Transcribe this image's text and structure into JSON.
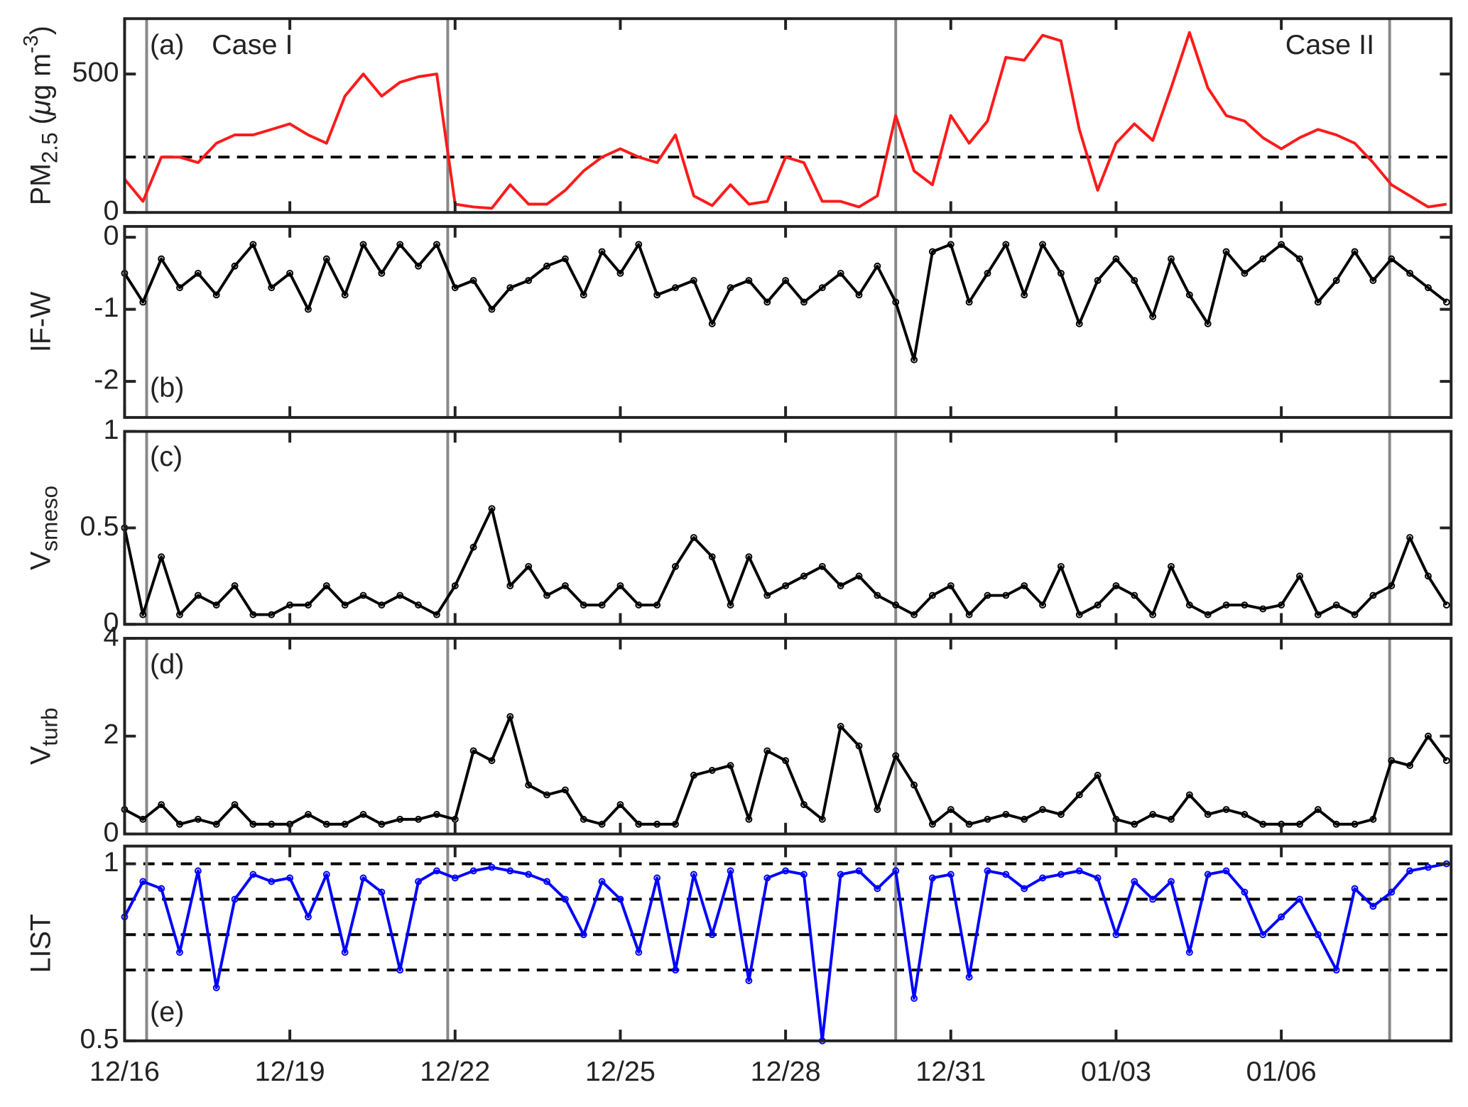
{
  "chart_data": [
    {
      "type": "line",
      "label": "(a)",
      "case_left": "Case I",
      "case_right": "Case II",
      "ylabel": "PM",
      "ylabel_sub": "2.5",
      "ylabel_unit": " (",
      "ylabel_mu": "μ",
      "ylabel_unit2": "g m",
      "ylabel_sup": "-3",
      "ylabel_end": ")",
      "color": "#ff1a1a",
      "marker": false,
      "values": [
        120,
        40,
        200,
        200,
        180,
        250,
        280,
        280,
        300,
        320,
        280,
        250,
        420,
        500,
        420,
        470,
        490,
        500,
        30,
        20,
        15,
        100,
        30,
        30,
        80,
        150,
        200,
        230,
        200,
        180,
        280,
        60,
        25,
        100,
        30,
        40,
        200,
        180,
        40,
        40,
        20,
        60,
        350,
        150,
        100,
        350,
        250,
        330,
        560,
        550,
        640,
        620,
        300,
        80,
        250,
        320,
        260,
        450,
        650,
        450,
        350,
        330,
        270,
        230,
        270,
        300,
        280,
        250,
        180,
        100,
        60,
        20,
        30
      ],
      "xlim": [
        0,
        72.25
      ],
      "ylim": [
        0,
        700
      ],
      "yticks": [
        0,
        500
      ],
      "hlines": [
        200
      ]
    },
    {
      "type": "line",
      "label": "(b)",
      "ylabel": "IF-W",
      "color": "#000000",
      "marker": true,
      "values": [
        -0.5,
        -0.9,
        -0.3,
        -0.7,
        -0.5,
        -0.8,
        -0.4,
        -0.1,
        -0.7,
        -0.5,
        -1.0,
        -0.3,
        -0.8,
        -0.1,
        -0.5,
        -0.1,
        -0.4,
        -0.1,
        -0.7,
        -0.6,
        -1.0,
        -0.7,
        -0.6,
        -0.4,
        -0.3,
        -0.8,
        -0.2,
        -0.5,
        -0.1,
        -0.8,
        -0.7,
        -0.6,
        -1.2,
        -0.7,
        -0.6,
        -0.9,
        -0.6,
        -0.9,
        -0.7,
        -0.5,
        -0.8,
        -0.4,
        -0.9,
        -1.7,
        -0.2,
        -0.1,
        -0.9,
        -0.5,
        -0.1,
        -0.8,
        -0.1,
        -0.5,
        -1.2,
        -0.6,
        -0.3,
        -0.6,
        -1.1,
        -0.3,
        -0.8,
        -1.2,
        -0.2,
        -0.5,
        -0.3,
        -0.1,
        -0.3,
        -0.9,
        -0.6,
        -0.2,
        -0.6,
        -0.3,
        -0.5,
        -0.7,
        -0.9
      ],
      "xlim": [
        0,
        72.25
      ],
      "ylim": [
        -2.5,
        0.15
      ],
      "yticks": [
        -2,
        -1,
        0
      ]
    },
    {
      "type": "line",
      "label": "(c)",
      "ylabel": "V",
      "ylabel_sub": "smeso",
      "color": "#000000",
      "marker": true,
      "values": [
        0.5,
        0.05,
        0.35,
        0.05,
        0.15,
        0.1,
        0.2,
        0.05,
        0.05,
        0.1,
        0.1,
        0.2,
        0.1,
        0.15,
        0.1,
        0.15,
        0.1,
        0.05,
        0.2,
        0.4,
        0.6,
        0.2,
        0.3,
        0.15,
        0.2,
        0.1,
        0.1,
        0.2,
        0.1,
        0.1,
        0.3,
        0.45,
        0.35,
        0.1,
        0.35,
        0.15,
        0.2,
        0.25,
        0.3,
        0.2,
        0.25,
        0.15,
        0.1,
        0.05,
        0.15,
        0.2,
        0.05,
        0.15,
        0.15,
        0.2,
        0.1,
        0.3,
        0.05,
        0.1,
        0.2,
        0.15,
        0.05,
        0.3,
        0.1,
        0.05,
        0.1,
        0.1,
        0.08,
        0.1,
        0.25,
        0.05,
        0.1,
        0.05,
        0.15,
        0.2,
        0.45,
        0.25,
        0.1
      ],
      "xlim": [
        0,
        72.25
      ],
      "ylim": [
        0,
        1
      ],
      "yticks": [
        0,
        0.5,
        1
      ]
    },
    {
      "type": "line",
      "label": "(d)",
      "ylabel": "V",
      "ylabel_sub": "turb",
      "color": "#000000",
      "marker": true,
      "values": [
        0.5,
        0.3,
        0.6,
        0.2,
        0.3,
        0.2,
        0.6,
        0.2,
        0.2,
        0.2,
        0.4,
        0.2,
        0.2,
        0.4,
        0.2,
        0.3,
        0.3,
        0.4,
        0.3,
        1.7,
        1.5,
        2.4,
        1.0,
        0.8,
        0.9,
        0.3,
        0.2,
        0.6,
        0.2,
        0.2,
        0.2,
        1.2,
        1.3,
        1.4,
        0.3,
        1.7,
        1.5,
        0.6,
        0.3,
        2.2,
        1.8,
        0.5,
        1.6,
        1.0,
        0.2,
        0.5,
        0.2,
        0.3,
        0.4,
        0.3,
        0.5,
        0.4,
        0.8,
        1.2,
        0.3,
        0.2,
        0.4,
        0.3,
        0.8,
        0.4,
        0.5,
        0.4,
        0.2,
        0.2,
        0.2,
        0.5,
        0.2,
        0.2,
        0.3,
        1.5,
        1.4,
        2.0,
        1.5
      ],
      "xlim": [
        0,
        72.25
      ],
      "ylim": [
        0,
        4
      ],
      "yticks": [
        0,
        2,
        4
      ]
    },
    {
      "type": "line",
      "label": "(e)",
      "ylabel": "LIST",
      "color": "#0000ff",
      "marker": true,
      "categories": [
        "12/16",
        null,
        null,
        null,
        null,
        null,
        null,
        null,
        null,
        "12/19",
        null,
        null,
        null,
        null,
        null,
        null,
        null,
        null,
        "12/22",
        null,
        null,
        null,
        null,
        null,
        null,
        null,
        null,
        "12/25",
        null,
        null,
        null,
        null,
        null,
        null,
        null,
        null,
        "12/28",
        null,
        null,
        null,
        null,
        null,
        null,
        null,
        null,
        "12/31",
        null,
        null,
        null,
        null,
        null,
        null,
        null,
        null,
        "01/03",
        null,
        null,
        null,
        null,
        null,
        null,
        null,
        null,
        "01/06",
        null,
        null,
        null,
        null,
        null,
        null,
        null,
        null,
        null
      ],
      "values": [
        0.85,
        0.95,
        0.93,
        0.75,
        0.98,
        0.65,
        0.9,
        0.97,
        0.95,
        0.96,
        0.85,
        0.97,
        0.75,
        0.96,
        0.92,
        0.7,
        0.95,
        0.98,
        0.96,
        0.98,
        0.99,
        0.98,
        0.97,
        0.95,
        0.9,
        0.8,
        0.95,
        0.9,
        0.75,
        0.96,
        0.7,
        0.97,
        0.8,
        0.98,
        0.67,
        0.96,
        0.98,
        0.97,
        0.5,
        0.97,
        0.98,
        0.93,
        0.98,
        0.62,
        0.96,
        0.97,
        0.68,
        0.98,
        0.97,
        0.93,
        0.96,
        0.97,
        0.98,
        0.96,
        0.8,
        0.95,
        0.9,
        0.95,
        0.75,
        0.97,
        0.98,
        0.92,
        0.8,
        0.85,
        0.9,
        0.8,
        0.7,
        0.93,
        0.88,
        0.92,
        0.98,
        0.99,
        1.0
      ],
      "xlim": [
        0,
        72.25
      ],
      "ylim": [
        0.5,
        1.05
      ],
      "yticks": [
        0.5,
        1
      ],
      "hlines": [
        0.7,
        0.8,
        0.9,
        1
      ]
    }
  ],
  "case_boundaries": [
    1.2,
    17.6,
    42,
    68.9
  ]
}
